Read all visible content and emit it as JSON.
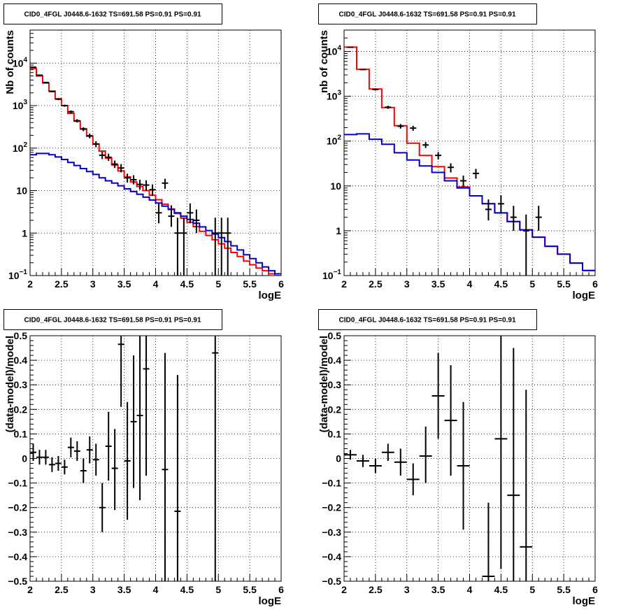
{
  "title": "CID0_4FGL J0448.6-1632 TS=691.58 PS=0.91 PS=0.91",
  "colors": {
    "model_total": "#ff0000",
    "model_bkg": "#0000cc",
    "data": "#000000",
    "grid": "#000000"
  },
  "chart_data": [
    {
      "type": "line",
      "log_y": true,
      "title": "CID0_4FGL J0448.6-1632 TS=691.58 PS=0.91 PS=0.91",
      "xlabel": "logE",
      "ylabel": "Nb of counts",
      "xlim": [
        2,
        6
      ],
      "ylim": [
        0.1,
        60000
      ],
      "x_ticks": [
        "2",
        "2.5",
        "3",
        "3.5",
        "4",
        "4.5",
        "5",
        "5.5",
        "6"
      ],
      "y_ticks": [
        {
          "v": 0.1,
          "base": "10",
          "exp": "−1"
        },
        {
          "v": 1,
          "label": "1"
        },
        {
          "v": 10,
          "label": "10"
        },
        {
          "v": 100,
          "base": "10",
          "exp": "2"
        },
        {
          "v": 1000,
          "base": "10",
          "exp": "3"
        },
        {
          "v": 10000,
          "base": "10",
          "exp": "4"
        }
      ],
      "grid": true,
      "bin_edges": [
        2,
        2.1,
        2.2,
        2.3,
        2.4,
        2.5,
        2.6,
        2.7,
        2.8,
        2.9,
        3,
        3.1,
        3.2,
        3.3,
        3.4,
        3.5,
        3.6,
        3.7,
        3.8,
        3.9,
        4,
        4.1,
        4.2,
        4.3,
        4.4,
        4.5,
        4.6,
        4.7,
        4.8,
        4.9,
        5,
        5.1,
        5.2,
        5.3,
        5.4,
        5.5,
        5.6,
        5.7,
        5.8,
        5.9,
        6
      ],
      "series": [
        {
          "role": "model_total",
          "values": [
            7500,
            5000,
            3400,
            2200,
            1450,
            1000,
            660,
            430,
            285,
            190,
            125,
            85,
            58,
            40,
            29,
            21,
            16,
            12.5,
            10,
            7.8,
            6.1,
            4.8,
            3.7,
            2.9,
            2.25,
            1.8,
            1.42,
            1.1,
            0.88,
            0.7,
            0.56,
            0.44,
            0.35,
            0.28,
            0.22,
            0.18,
            0.15,
            0.13,
            0.11,
            0.1
          ]
        },
        {
          "role": "model_bkg",
          "values": [
            70,
            75,
            75,
            70,
            62,
            54,
            46,
            39,
            33,
            28,
            24,
            20,
            17,
            15,
            13,
            11,
            9.5,
            8.2,
            7,
            6,
            5.1,
            4.3,
            3.6,
            3,
            2.5,
            2.1,
            1.7,
            1.4,
            1.15,
            0.95,
            0.78,
            0.63,
            0.5,
            0.4,
            0.31,
            0.25,
            0.2,
            0.16,
            0.13,
            0.11
          ]
        },
        {
          "role": "data",
          "points": [
            {
              "x": 2.05,
              "y": 8000,
              "lo": 7800,
              "hi": 8200
            },
            {
              "x": 2.15,
              "y": 5200,
              "lo": 5050,
              "hi": 5350
            },
            {
              "x": 2.25,
              "y": 3500,
              "lo": 3380,
              "hi": 3620
            },
            {
              "x": 2.35,
              "y": 2150,
              "lo": 2060,
              "hi": 2240
            },
            {
              "x": 2.45,
              "y": 1420,
              "lo": 1345,
              "hi": 1495
            },
            {
              "x": 2.55,
              "y": 1000,
              "lo": 940,
              "hi": 1060
            },
            {
              "x": 2.65,
              "y": 720,
              "lo": 670,
              "hi": 770
            },
            {
              "x": 2.75,
              "y": 440,
              "lo": 400,
              "hi": 480
            },
            {
              "x": 2.85,
              "y": 280,
              "lo": 250,
              "hi": 310
            },
            {
              "x": 2.95,
              "y": 195,
              "lo": 170,
              "hi": 220
            },
            {
              "x": 3.05,
              "y": 125,
              "lo": 105,
              "hi": 145
            },
            {
              "x": 3.15,
              "y": 68,
              "lo": 55,
              "hi": 82
            },
            {
              "x": 3.25,
              "y": 61,
              "lo": 50,
              "hi": 74
            },
            {
              "x": 3.35,
              "y": 42,
              "lo": 34,
              "hi": 51
            },
            {
              "x": 3.45,
              "y": 34,
              "lo": 27,
              "hi": 42
            },
            {
              "x": 3.55,
              "y": 20,
              "lo": 15.5,
              "hi": 25
            },
            {
              "x": 3.65,
              "y": 18,
              "lo": 14,
              "hi": 23
            },
            {
              "x": 3.75,
              "y": 14,
              "lo": 10.5,
              "hi": 18
            },
            {
              "x": 3.85,
              "y": 13.5,
              "lo": 10,
              "hi": 17.5
            },
            {
              "x": 3.95,
              "y": 10.5,
              "lo": 7.5,
              "hi": 14
            },
            {
              "x": 4.05,
              "y": 3,
              "lo": 1.7,
              "hi": 5
            },
            {
              "x": 4.15,
              "y": 15,
              "lo": 11,
              "hi": 19
            },
            {
              "x": 4.25,
              "y": 2.5,
              "lo": 1.4,
              "hi": 4.5
            },
            {
              "x": 4.35,
              "y": 1,
              "lo": 0.1,
              "hi": 2.3
            },
            {
              "x": 4.45,
              "y": 1,
              "lo": 0.1,
              "hi": 2.3
            },
            {
              "x": 4.55,
              "y": 3,
              "lo": 1.7,
              "hi": 5
            },
            {
              "x": 4.65,
              "y": 2,
              "lo": 1,
              "hi": 3.6
            },
            {
              "x": 4.95,
              "y": 1,
              "lo": 0.1,
              "hi": 2.3
            },
            {
              "x": 5.05,
              "y": 1,
              "lo": 0.1,
              "hi": 2.3
            },
            {
              "x": 5.15,
              "y": 1,
              "lo": 0.1,
              "hi": 2.3
            }
          ]
        }
      ]
    },
    {
      "type": "line",
      "log_y": true,
      "title": "CID0_4FGL J0448.6-1632 TS=691.58 PS=0.91 PS=0.91",
      "xlabel": "logE",
      "ylabel": "nb of counts",
      "xlim": [
        2,
        6
      ],
      "ylim": [
        0.1,
        30000
      ],
      "x_ticks": [
        "2",
        "2.5",
        "3",
        "3.5",
        "4",
        "4.5",
        "5",
        "5.5",
        "6"
      ],
      "y_ticks": [
        {
          "v": 0.1,
          "base": "10",
          "exp": "−1"
        },
        {
          "v": 1,
          "label": "1"
        },
        {
          "v": 10,
          "label": "10"
        },
        {
          "v": 100,
          "base": "10",
          "exp": "2"
        },
        {
          "v": 1000,
          "base": "10",
          "exp": "3"
        },
        {
          "v": 10000,
          "base": "10",
          "exp": "4"
        }
      ],
      "grid": true,
      "bin_edges": [
        2,
        2.2,
        2.4,
        2.6,
        2.8,
        3,
        3.2,
        3.4,
        3.6,
        3.8,
        4,
        4.2,
        4.4,
        4.6,
        4.8,
        5,
        5.2,
        5.4,
        5.6,
        5.8,
        6
      ],
      "series": [
        {
          "role": "model_total",
          "values": [
            12500,
            4000,
            1450,
            560,
            220,
            90,
            48,
            27,
            15,
            9.5,
            6,
            4,
            2.5,
            1.6,
            1.05,
            0.72,
            0.45,
            0.3,
            0.19,
            0.13
          ]
        },
        {
          "role": "model_bkg",
          "values": [
            140,
            145,
            110,
            85,
            55,
            38,
            28,
            20,
            13,
            9,
            6,
            4,
            2.5,
            1.6,
            1.05,
            0.72,
            0.45,
            0.3,
            0.19,
            0.13
          ]
        },
        {
          "role": "data",
          "points": [
            {
              "x": 2.1,
              "y": 12400,
              "lo": 12150,
              "hi": 12650
            },
            {
              "x": 2.3,
              "y": 3950,
              "lo": 3820,
              "hi": 4080
            },
            {
              "x": 2.5,
              "y": 1420,
              "lo": 1345,
              "hi": 1495
            },
            {
              "x": 2.7,
              "y": 570,
              "lo": 525,
              "hi": 615
            },
            {
              "x": 2.9,
              "y": 215,
              "lo": 190,
              "hi": 240
            },
            {
              "x": 3.1,
              "y": 195,
              "lo": 170,
              "hi": 220
            },
            {
              "x": 3.3,
              "y": 82,
              "lo": 70,
              "hi": 95
            },
            {
              "x": 3.5,
              "y": 48,
              "lo": 39,
              "hi": 57
            },
            {
              "x": 3.7,
              "y": 26,
              "lo": 20,
              "hi": 32
            },
            {
              "x": 3.9,
              "y": 13,
              "lo": 9.5,
              "hi": 17
            },
            {
              "x": 4.1,
              "y": 19,
              "lo": 14.5,
              "hi": 24
            },
            {
              "x": 4.3,
              "y": 3,
              "lo": 1.7,
              "hi": 5
            },
            {
              "x": 4.5,
              "y": 4,
              "lo": 2.4,
              "hi": 6.2
            },
            {
              "x": 4.7,
              "y": 2,
              "lo": 1,
              "hi": 3.6
            },
            {
              "x": 4.9,
              "y": 1,
              "lo": 0.1,
              "hi": 2.3
            },
            {
              "x": 5.1,
              "y": 2,
              "lo": 1,
              "hi": 3.6
            }
          ]
        }
      ]
    },
    {
      "type": "scatter",
      "log_y": false,
      "title": "CID0_4FGL J0448.6-1632 TS=691.58 PS=0.91 PS=0.91",
      "xlabel": "logE",
      "ylabel": "(data-model)/model",
      "xlim": [
        2,
        6
      ],
      "ylim": [
        -0.5,
        0.5
      ],
      "x_ticks": [
        "2",
        "2.5",
        "3",
        "3.5",
        "4",
        "4.5",
        "5",
        "5.5",
        "6"
      ],
      "y_ticks": [
        {
          "v": -0.5,
          "label": "−0.5"
        },
        {
          "v": -0.4,
          "label": "−0.4"
        },
        {
          "v": -0.3,
          "label": "−0.3"
        },
        {
          "v": -0.2,
          "label": "−0.2"
        },
        {
          "v": -0.1,
          "label": "−0.1"
        },
        {
          "v": 0,
          "label": "0"
        },
        {
          "v": 0.1,
          "label": "0.1"
        },
        {
          "v": 0.2,
          "label": "0.2"
        },
        {
          "v": 0.3,
          "label": "0.3"
        },
        {
          "v": 0.4,
          "label": "0.4"
        },
        {
          "v": 0.5,
          "label": "0.5"
        }
      ],
      "grid": true,
      "xerr": 0.05,
      "series": [
        {
          "role": "data",
          "points": [
            {
              "x": 2.05,
              "y": 0.025,
              "lo": -0.01,
              "hi": 0.06
            },
            {
              "x": 2.15,
              "y": 0.005,
              "lo": -0.025,
              "hi": 0.035
            },
            {
              "x": 2.25,
              "y": 0.005,
              "lo": -0.025,
              "hi": 0.035
            },
            {
              "x": 2.35,
              "y": -0.025,
              "lo": -0.055,
              "hi": 0.005
            },
            {
              "x": 2.45,
              "y": -0.02,
              "lo": -0.05,
              "hi": 0.01
            },
            {
              "x": 2.55,
              "y": -0.035,
              "lo": -0.065,
              "hi": -0.005
            },
            {
              "x": 2.65,
              "y": 0.045,
              "lo": 0.005,
              "hi": 0.085
            },
            {
              "x": 2.75,
              "y": 0.03,
              "lo": -0.01,
              "hi": 0.07
            },
            {
              "x": 2.85,
              "y": -0.05,
              "lo": -0.1,
              "hi": 0
            },
            {
              "x": 2.95,
              "y": 0.035,
              "lo": -0.02,
              "hi": 0.09
            },
            {
              "x": 3.05,
              "y": -0.005,
              "lo": -0.07,
              "hi": 0.06
            },
            {
              "x": 3.15,
              "y": -0.2,
              "lo": -0.3,
              "hi": -0.1
            },
            {
              "x": 3.25,
              "y": 0.05,
              "lo": -0.09,
              "hi": 0.19
            },
            {
              "x": 3.35,
              "y": -0.04,
              "lo": -0.21,
              "hi": 0.12
            },
            {
              "x": 3.45,
              "y": 0.465,
              "lo": 0.21,
              "hi": 0.5
            },
            {
              "x": 3.55,
              "y": -0.01,
              "lo": -0.25,
              "hi": 0.23
            },
            {
              "x": 3.65,
              "y": 0.15,
              "lo": -0.12,
              "hi": 0.42
            },
            {
              "x": 3.75,
              "y": 0.175,
              "lo": -0.17,
              "hi": 0.5
            },
            {
              "x": 3.85,
              "y": 0.365,
              "lo": -0.07,
              "hi": 0.5
            },
            {
              "x": 4.15,
              "y": -0.045,
              "lo": -0.5,
              "hi": 0.43
            },
            {
              "x": 4.35,
              "y": -0.215,
              "lo": -0.5,
              "hi": 0.34
            },
            {
              "x": 4.95,
              "y": 0.43,
              "lo": -0.5,
              "hi": 0.5
            }
          ]
        }
      ]
    },
    {
      "type": "scatter",
      "log_y": false,
      "title": "CID0_4FGL J0448.6-1632 TS=691.58 PS=0.91 PS=0.91",
      "xlabel": "logE",
      "ylabel": "(data-model)/model",
      "xlim": [
        2,
        6
      ],
      "ylim": [
        -0.5,
        0.5
      ],
      "x_ticks": [
        "2",
        "2.5",
        "3",
        "3.5",
        "4",
        "4.5",
        "5",
        "5.5",
        "6"
      ],
      "y_ticks": [
        {
          "v": -0.5,
          "label": "−0.5"
        },
        {
          "v": -0.4,
          "label": "−0.4"
        },
        {
          "v": -0.3,
          "label": "−0.3"
        },
        {
          "v": -0.2,
          "label": "−0.2"
        },
        {
          "v": -0.1,
          "label": "−0.1"
        },
        {
          "v": 0,
          "label": "0"
        },
        {
          "v": 0.1,
          "label": "0.1"
        },
        {
          "v": 0.2,
          "label": "0.2"
        },
        {
          "v": 0.3,
          "label": "0.3"
        },
        {
          "v": 0.4,
          "label": "0.4"
        },
        {
          "v": 0.5,
          "label": "0.5"
        }
      ],
      "grid": true,
      "xerr": 0.1,
      "series": [
        {
          "role": "data",
          "points": [
            {
              "x": 2.1,
              "y": 0.015,
              "lo": -0.005,
              "hi": 0.035
            },
            {
              "x": 2.3,
              "y": -0.01,
              "lo": -0.035,
              "hi": 0.015
            },
            {
              "x": 2.5,
              "y": -0.03,
              "lo": -0.06,
              "hi": 0
            },
            {
              "x": 2.7,
              "y": 0.025,
              "lo": -0.01,
              "hi": 0.06
            },
            {
              "x": 2.9,
              "y": -0.015,
              "lo": -0.07,
              "hi": 0.04
            },
            {
              "x": 3.1,
              "y": -0.085,
              "lo": -0.15,
              "hi": -0.02
            },
            {
              "x": 3.3,
              "y": 0.01,
              "lo": -0.1,
              "hi": 0.13
            },
            {
              "x": 3.5,
              "y": 0.255,
              "lo": 0.08,
              "hi": 0.43
            },
            {
              "x": 3.7,
              "y": 0.155,
              "lo": -0.07,
              "hi": 0.38
            },
            {
              "x": 3.9,
              "y": -0.03,
              "lo": -0.29,
              "hi": 0.23
            },
            {
              "x": 4.3,
              "y": -0.48,
              "lo": -0.5,
              "hi": -0.18
            },
            {
              "x": 4.5,
              "y": 0.08,
              "lo": -0.45,
              "hi": 0.5
            },
            {
              "x": 4.7,
              "y": -0.15,
              "lo": -0.5,
              "hi": 0.45
            },
            {
              "x": 4.9,
              "y": -0.36,
              "lo": -0.5,
              "hi": 0.28
            }
          ]
        }
      ]
    }
  ]
}
